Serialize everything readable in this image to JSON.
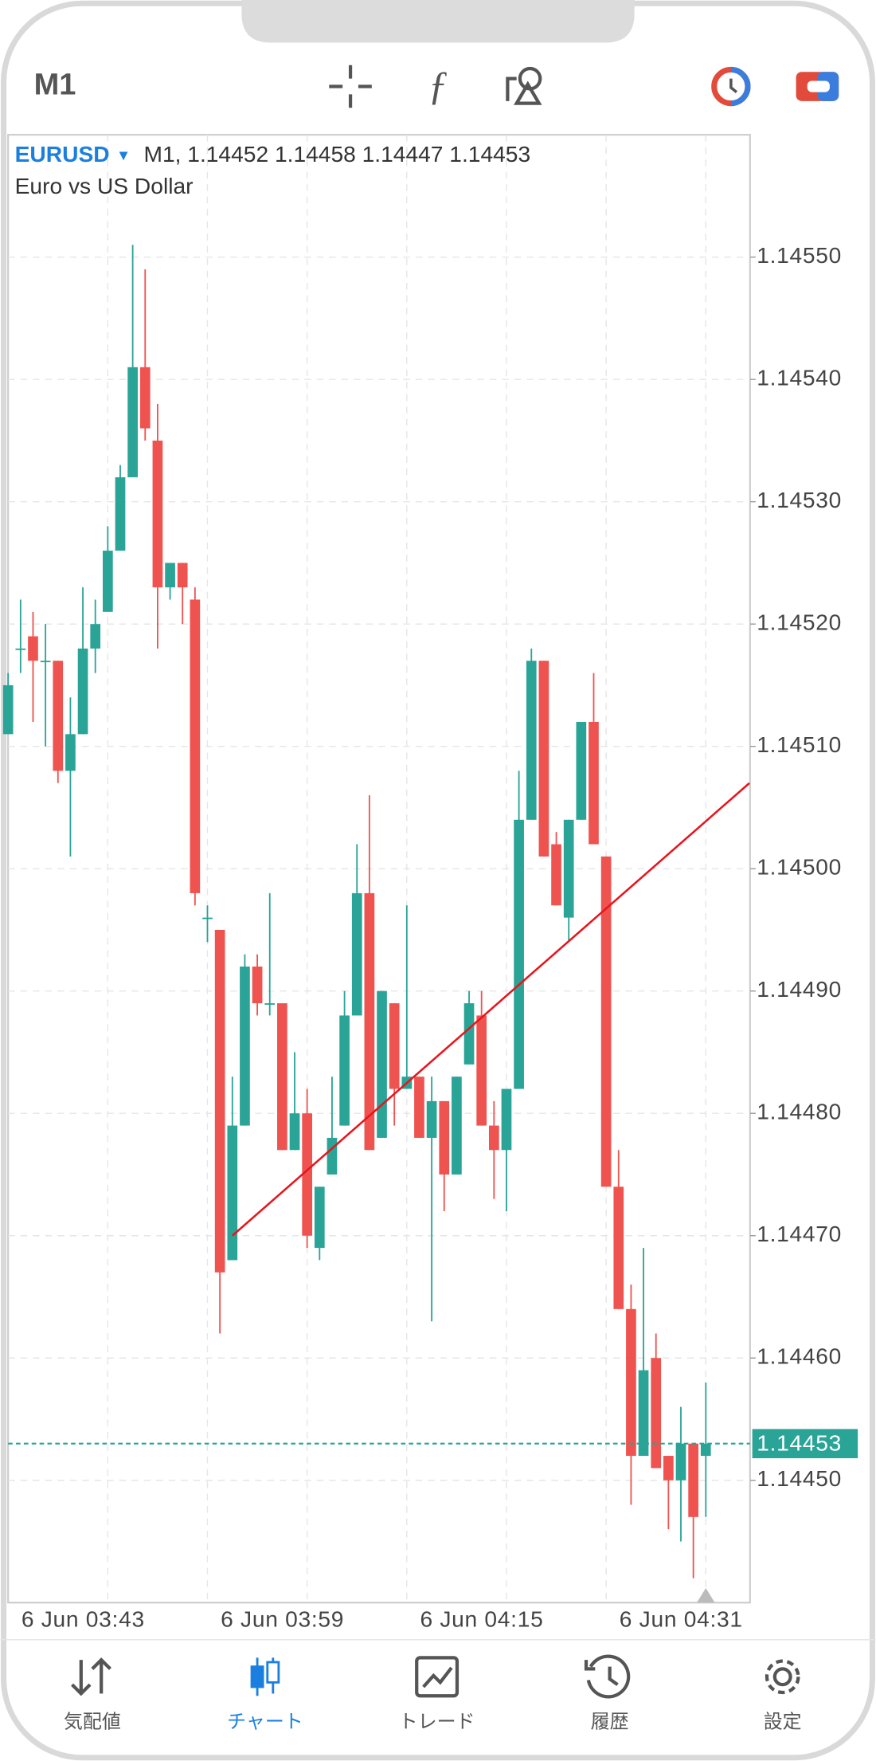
{
  "app": {
    "timeframe": "M1",
    "nav": [
      "気配値",
      "チャート",
      "トレード",
      "履歴",
      "設定"
    ],
    "active_nav": 1
  },
  "chart_data": {
    "type": "candlestick",
    "symbol": "EURUSD",
    "description": "Euro vs US Dollar",
    "categories": [
      null,
      null,
      null,
      null,
      null,
      null,
      null,
      null,
      "6 Jun 03:43",
      null,
      null,
      null,
      null,
      null,
      null,
      null,
      null,
      null,
      null,
      null,
      null,
      null,
      null,
      null,
      "6 Jun 03:59",
      null,
      null,
      null,
      null,
      null,
      null,
      null,
      null,
      null,
      null,
      null,
      null,
      null,
      null,
      null,
      "6 Jun 04:15",
      null,
      null,
      null,
      null,
      null,
      null,
      null,
      null,
      null,
      null,
      null,
      null,
      null,
      null,
      null,
      "6 Jun 04:31"
    ],
    "open": [
      1.14511,
      1.14518,
      1.14519,
      1.14517,
      1.14517,
      1.14508,
      1.14511,
      1.14518,
      1.14521,
      1.14526,
      1.14532,
      1.14541,
      1.14535,
      1.14523,
      1.14525,
      1.14522,
      1.14496,
      1.14495,
      1.14468,
      1.14479,
      1.14492,
      1.14489,
      1.14489,
      1.14477,
      1.1448,
      1.14469,
      1.14475,
      1.14479,
      1.14488,
      1.14498,
      1.14478,
      1.14489,
      1.14482,
      1.14483,
      1.14478,
      1.14481,
      1.14475,
      1.14484,
      1.14488,
      1.14479,
      1.14477,
      1.14482,
      1.14504,
      1.14517,
      1.14502,
      1.14496,
      1.14504,
      1.14512,
      1.14501,
      1.14474,
      1.14464,
      1.14452,
      1.1446,
      1.14452,
      1.1445,
      1.14453,
      1.14452
    ],
    "high": [
      1.14516,
      1.14522,
      1.14521,
      1.1452,
      1.14517,
      1.14514,
      1.14523,
      1.14522,
      1.14528,
      1.14533,
      1.14551,
      1.14549,
      1.14538,
      1.14525,
      1.14525,
      1.14523,
      1.14497,
      1.14495,
      1.14483,
      1.14493,
      1.14493,
      1.14498,
      1.14489,
      1.14485,
      1.14482,
      1.14474,
      1.14483,
      1.1449,
      1.14502,
      1.14506,
      1.1449,
      1.14489,
      1.14497,
      1.14483,
      1.14483,
      1.14481,
      1.14483,
      1.1449,
      1.1449,
      1.14481,
      1.14482,
      1.14508,
      1.14518,
      1.14517,
      1.14503,
      1.14504,
      1.14512,
      1.14516,
      1.14501,
      1.14477,
      1.14466,
      1.14469,
      1.14462,
      1.14452,
      1.14456,
      1.14453,
      1.14458
    ],
    "low": [
      1.14511,
      1.14516,
      1.14512,
      1.1451,
      1.14507,
      1.14501,
      1.14511,
      1.14516,
      1.14521,
      1.14526,
      1.14532,
      1.14535,
      1.14518,
      1.14522,
      1.1452,
      1.14497,
      1.14494,
      1.14462,
      1.14468,
      1.14479,
      1.14488,
      1.14488,
      1.14477,
      1.14477,
      1.14469,
      1.14468,
      1.14475,
      1.14479,
      1.14488,
      1.14477,
      1.14478,
      1.14479,
      1.14482,
      1.14478,
      1.14463,
      1.14472,
      1.14475,
      1.14484,
      1.14479,
      1.14473,
      1.14472,
      1.14482,
      1.14504,
      1.14501,
      1.14497,
      1.14494,
      1.14504,
      1.14502,
      1.14474,
      1.14464,
      1.14448,
      1.14452,
      1.14451,
      1.14446,
      1.14445,
      1.14442,
      1.14447
    ],
    "close": [
      1.14515,
      1.14518,
      1.14517,
      1.14517,
      1.14508,
      1.14511,
      1.14518,
      1.1452,
      1.14526,
      1.14532,
      1.14541,
      1.14536,
      1.14523,
      1.14525,
      1.14523,
      1.14498,
      1.14496,
      1.14467,
      1.14479,
      1.14492,
      1.14489,
      1.14489,
      1.14477,
      1.1448,
      1.1447,
      1.14474,
      1.14478,
      1.14488,
      1.14498,
      1.14477,
      1.1449,
      1.14482,
      1.14483,
      1.14478,
      1.14481,
      1.14475,
      1.14483,
      1.14489,
      1.14479,
      1.14477,
      1.14482,
      1.14504,
      1.14517,
      1.14501,
      1.14497,
      1.14504,
      1.14512,
      1.14502,
      1.14474,
      1.14464,
      1.14452,
      1.14459,
      1.14451,
      1.1445,
      1.14453,
      1.14447,
      1.14453
    ],
    "up_color": "#2aa497",
    "down_color": "#ef5350",
    "ylim": [
      1.1444,
      1.1456
    ],
    "yticks": [
      {
        "value": 1.1445,
        "label": "1.14450"
      },
      {
        "value": 1.1446,
        "label": "1.14460"
      },
      {
        "value": 1.1447,
        "label": "1.14470"
      },
      {
        "value": 1.1448,
        "label": "1.14480"
      },
      {
        "value": 1.1449,
        "label": "1.14490"
      },
      {
        "value": 1.145,
        "label": "1.14500"
      },
      {
        "value": 1.1451,
        "label": "1.14510"
      },
      {
        "value": 1.1452,
        "label": "1.14520"
      },
      {
        "value": 1.1453,
        "label": "1.14530"
      },
      {
        "value": 1.1454,
        "label": "1.14540"
      },
      {
        "value": 1.1455,
        "label": "1.14550"
      }
    ],
    "grid": true,
    "current_price": 1.14453,
    "trend_line": {
      "color": "#e8141c",
      "x": [
        18,
        59.5
      ],
      "y": [
        1.1447,
        1.14507
      ]
    }
  }
}
